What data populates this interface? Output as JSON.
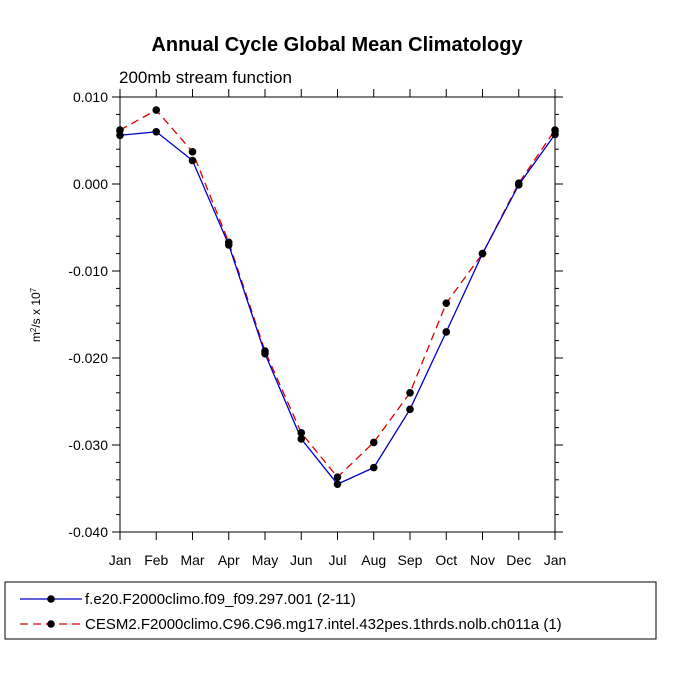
{
  "chart_data": {
    "type": "line",
    "title": "Annual Cycle Global Mean Climatology",
    "subtitle": "200mb stream function",
    "ylabel": "m²/s x 10⁷",
    "ylabel_base": "m",
    "ylabel_sup1": "2",
    "ylabel_mid": "/s x 10",
    "ylabel_sup2": "7",
    "ylim": [
      -0.04,
      0.01
    ],
    "yticks": [
      0.01,
      0.0,
      -0.01,
      -0.02,
      -0.03,
      -0.04
    ],
    "ytick_labels": [
      "0.010",
      "0.000",
      "-0.010",
      "-0.020",
      "-0.030",
      "-0.040"
    ],
    "categories": [
      "Jan",
      "Feb",
      "Mar",
      "Apr",
      "May",
      "Jun",
      "Jul",
      "Aug",
      "Sep",
      "Oct",
      "Nov",
      "Dec",
      "Jan"
    ],
    "series": [
      {
        "name": "f.e20.F2000climo.f09_f09.297.001 (2-11)",
        "color": "#0000cc",
        "style": "solid",
        "values": [
          0.0056,
          0.006,
          0.0027,
          -0.007,
          -0.0195,
          -0.0293,
          -0.0345,
          -0.0326,
          -0.0259,
          -0.017,
          -0.008,
          -0.0001,
          0.0057
        ]
      },
      {
        "name": "CESM2.F2000climo.C96.C96.mg17.intel.432pes.1thrds.nolb.ch011a (1)",
        "color": "#dd0000",
        "style": "dashed",
        "values": [
          0.0062,
          0.0085,
          0.0037,
          -0.0067,
          -0.0192,
          -0.0286,
          -0.0337,
          -0.0297,
          -0.024,
          -0.0137,
          -0.008,
          0.0001,
          0.0062
        ]
      }
    ]
  }
}
